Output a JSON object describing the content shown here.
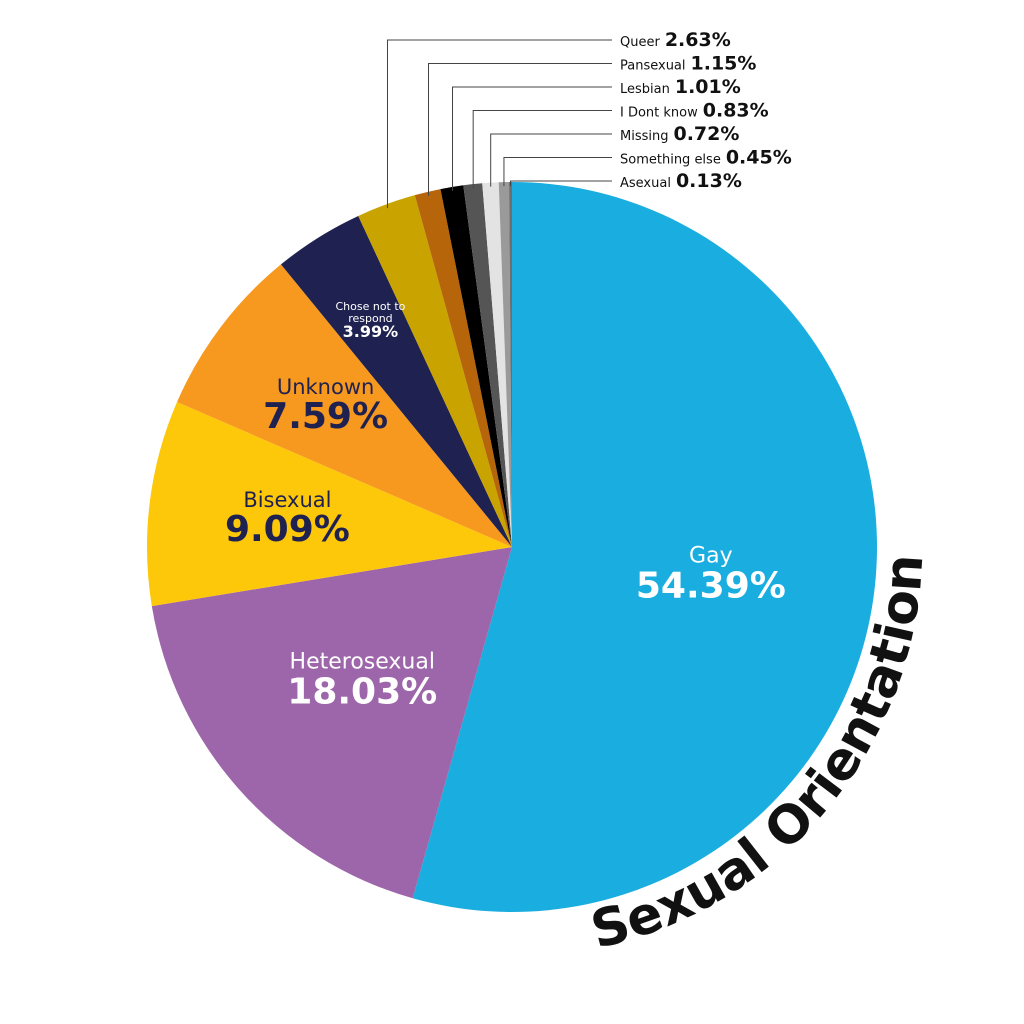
{
  "chart_data": {
    "type": "pie",
    "title": "Sexual Orientation",
    "categories": [
      "Gay",
      "Heterosexual",
      "Bisexual",
      "Unknown",
      "Chose not to respond",
      "Queer",
      "Pansexual",
      "Lesbian",
      "I Dont know",
      "Missing",
      "Something else",
      "Asexual"
    ],
    "values": [
      54.39,
      18.03,
      9.09,
      7.59,
      3.99,
      2.63,
      1.15,
      1.01,
      0.83,
      0.72,
      0.45,
      0.13
    ],
    "value_labels": [
      "54.39%",
      "18.03%",
      "9.09%",
      "7.59%",
      "3.99%",
      "2.63%",
      "1.15%",
      "1.01%",
      "0.83%",
      "0.72%",
      "0.45%",
      "0.13%"
    ],
    "colors": [
      "#1aade0",
      "#9e66aa",
      "#fdc80a",
      "#f7981f",
      "#1f2150",
      "#c9a300",
      "#b6650a",
      "#000000",
      "#555555",
      "#e3e3e3",
      "#9a9a9a",
      "#6e6e6e"
    ]
  }
}
